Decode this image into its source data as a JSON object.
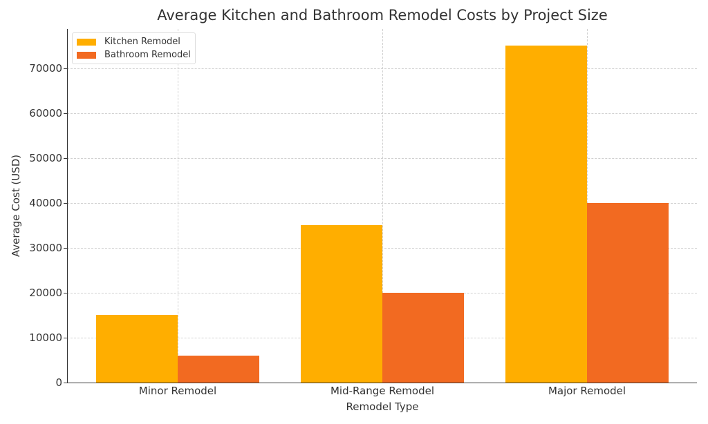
{
  "chart_data": {
    "type": "bar",
    "title": "Average Kitchen and Bathroom Remodel Costs by Project Size",
    "xlabel": "Remodel Type",
    "ylabel": "Average Cost (USD)",
    "categories": [
      "Minor Remodel",
      "Mid-Range Remodel",
      "Major Remodel"
    ],
    "series": [
      {
        "name": "Kitchen Remodel",
        "color": "#FFAE00",
        "values": [
          15000,
          35000,
          75000
        ]
      },
      {
        "name": "Bathroom Remodel",
        "color": "#F26A21",
        "values": [
          6000,
          20000,
          40000
        ]
      }
    ],
    "ylim": [
      0,
      78750
    ],
    "yticks": [
      0,
      10000,
      20000,
      30000,
      40000,
      50000,
      60000,
      70000
    ],
    "grid": true,
    "legend_position": "upper left"
  }
}
